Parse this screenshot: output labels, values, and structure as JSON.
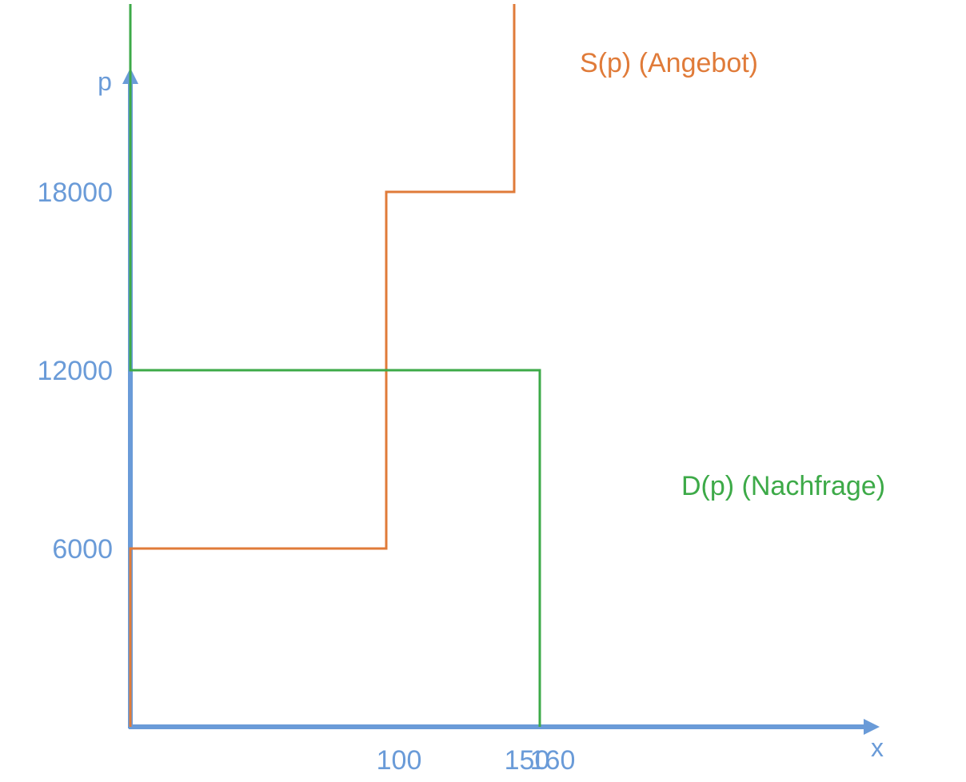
{
  "chart_data": {
    "type": "line",
    "xlabel": "x",
    "ylabel": "p",
    "xlim": [
      0,
      210
    ],
    "ylim": [
      0,
      22000
    ],
    "x_ticks": [
      {
        "value": 100,
        "label": "100"
      },
      {
        "value": 150,
        "label": "150"
      },
      {
        "value": 160,
        "label": "160"
      }
    ],
    "y_ticks": [
      {
        "value": 6000,
        "label": "6000"
      },
      {
        "value": 12000,
        "label": "12000"
      },
      {
        "value": 18000,
        "label": "18000"
      }
    ],
    "grid": false,
    "legend": "none",
    "series": [
      {
        "name": "S(p) (Angebot)",
        "color": "#E07B39",
        "x": [
          0,
          0,
          100,
          100,
          150,
          150
        ],
        "y": [
          0,
          6000,
          6000,
          18000,
          18000,
          22000
        ]
      },
      {
        "name": "D(p) (Nachfrage)",
        "color": "#3DAA48",
        "x": [
          0,
          0,
          160,
          160
        ],
        "y": [
          22000,
          12000,
          12000,
          0
        ]
      }
    ],
    "axis_color": "#6A9BD8"
  },
  "footer_text": ""
}
